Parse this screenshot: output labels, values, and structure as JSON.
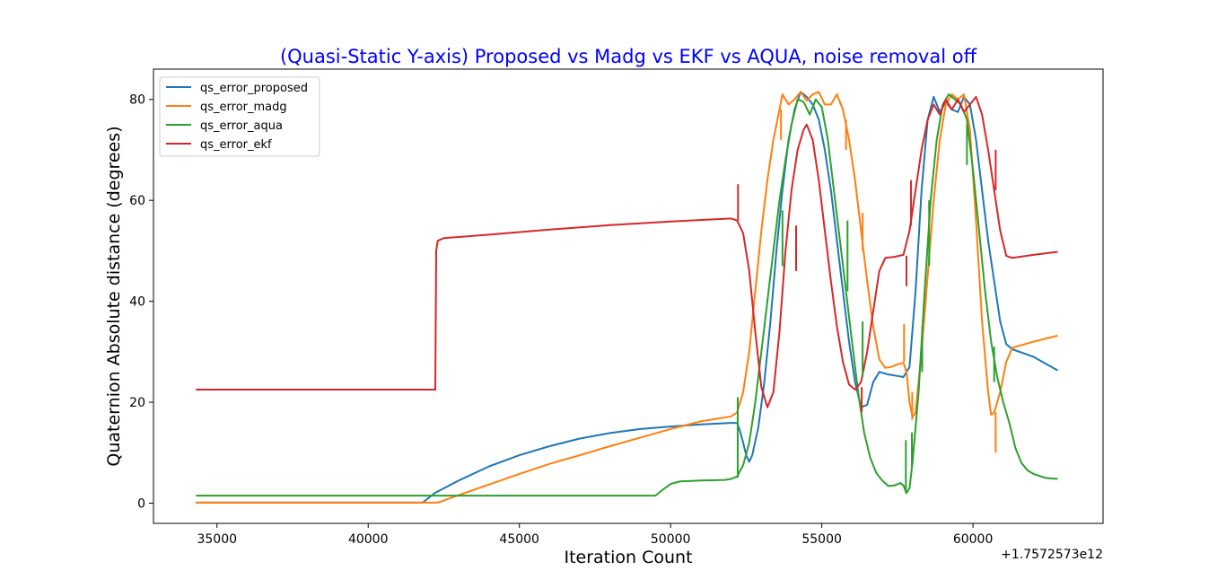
{
  "chart_data": {
    "type": "line",
    "title": "(Quasi-Static Y-axis) Proposed vs Madg vs EKF vs AQUA, noise removal off",
    "xlabel": "Iteration Count",
    "ylabel": "Quaternion Absolute distance (degrees)",
    "x_offset_label": "+1.7572573e12",
    "xlim": [
      32900,
      64300
    ],
    "ylim": [
      -4,
      86
    ],
    "x_ticks": [
      35000,
      40000,
      45000,
      50000,
      55000,
      60000
    ],
    "y_ticks": [
      0,
      20,
      40,
      60,
      80
    ],
    "grid": false,
    "legend_position": "top-left",
    "colors": {
      "title": "#0000ff",
      "axis": "#000000",
      "background": "#ffffff"
    },
    "series": [
      {
        "name": "qs_error_proposed",
        "color": "#1f77b4",
        "points": [
          [
            34300,
            0.1
          ],
          [
            41800,
            0.1
          ],
          [
            42200,
            2
          ],
          [
            43000,
            4.5
          ],
          [
            44000,
            7.3
          ],
          [
            45000,
            9.5
          ],
          [
            46000,
            11.3
          ],
          [
            47000,
            12.8
          ],
          [
            48000,
            13.9
          ],
          [
            49000,
            14.7
          ],
          [
            50000,
            15.2
          ],
          [
            51000,
            15.6
          ],
          [
            52000,
            15.9
          ],
          [
            52200,
            15.9
          ],
          [
            52300,
            14.2
          ],
          [
            52400,
            12
          ],
          [
            52500,
            9.5
          ],
          [
            52600,
            8.2
          ],
          [
            52700,
            9.5
          ],
          [
            52900,
            15
          ],
          [
            53100,
            24
          ],
          [
            53300,
            36
          ],
          [
            53500,
            50
          ],
          [
            53700,
            62
          ],
          [
            53900,
            72
          ],
          [
            54100,
            78
          ],
          [
            54300,
            81.5
          ],
          [
            54500,
            80.5
          ],
          [
            54700,
            79
          ],
          [
            54900,
            76
          ],
          [
            55100,
            70
          ],
          [
            55300,
            62
          ],
          [
            55500,
            52
          ],
          [
            55700,
            42
          ],
          [
            55900,
            32
          ],
          [
            56100,
            24
          ],
          [
            56300,
            19
          ],
          [
            56500,
            19.5
          ],
          [
            56700,
            24
          ],
          [
            56900,
            26
          ],
          [
            57200,
            25.5
          ],
          [
            57500,
            25.2
          ],
          [
            57700,
            25
          ],
          [
            57900,
            27
          ],
          [
            58100,
            42
          ],
          [
            58300,
            62
          ],
          [
            58500,
            76
          ],
          [
            58700,
            80.5
          ],
          [
            58900,
            77.5
          ],
          [
            59100,
            79.5
          ],
          [
            59300,
            78
          ],
          [
            59500,
            77.5
          ],
          [
            59700,
            80.5
          ],
          [
            59900,
            79
          ],
          [
            60100,
            72
          ],
          [
            60300,
            62
          ],
          [
            60500,
            52
          ],
          [
            60700,
            44
          ],
          [
            60900,
            36
          ],
          [
            61100,
            31.5
          ],
          [
            61300,
            30.5
          ],
          [
            62000,
            29
          ],
          [
            62800,
            26.3
          ]
        ]
      },
      {
        "name": "qs_error_madg",
        "color": "#ff7f0e",
        "points": [
          [
            34300,
            0.1
          ],
          [
            42300,
            0.1
          ],
          [
            43000,
            1.6
          ],
          [
            44000,
            3.7
          ],
          [
            45000,
            5.8
          ],
          [
            46000,
            7.8
          ],
          [
            47000,
            9.5
          ],
          [
            48000,
            11.3
          ],
          [
            49000,
            13
          ],
          [
            50000,
            14.7
          ],
          [
            51000,
            16.2
          ],
          [
            52000,
            17.2
          ],
          [
            52200,
            18
          ],
          [
            52400,
            22
          ],
          [
            52600,
            30
          ],
          [
            52800,
            42
          ],
          [
            53000,
            54
          ],
          [
            53200,
            64
          ],
          [
            53400,
            72
          ],
          [
            53600,
            78
          ],
          [
            53700,
            81
          ],
          [
            53900,
            79
          ],
          [
            54100,
            80
          ],
          [
            54300,
            81.5
          ],
          [
            54500,
            79.8
          ],
          [
            54700,
            81
          ],
          [
            54900,
            81.5
          ],
          [
            55100,
            79
          ],
          [
            55300,
            79
          ],
          [
            55500,
            81
          ],
          [
            55700,
            78
          ],
          [
            55900,
            72
          ],
          [
            56100,
            64
          ],
          [
            56300,
            54
          ],
          [
            56500,
            44
          ],
          [
            56700,
            35
          ],
          [
            56900,
            28.5
          ],
          [
            57100,
            26.8
          ],
          [
            57300,
            27
          ],
          [
            57500,
            27.5
          ],
          [
            57700,
            27.8
          ],
          [
            57800,
            26
          ],
          [
            57900,
            20
          ],
          [
            58000,
            17
          ],
          [
            58100,
            18
          ],
          [
            58300,
            30
          ],
          [
            58500,
            45
          ],
          [
            58700,
            60
          ],
          [
            58900,
            72
          ],
          [
            59100,
            79
          ],
          [
            59300,
            81
          ],
          [
            59500,
            80
          ],
          [
            59700,
            81
          ],
          [
            59900,
            74
          ],
          [
            60100,
            56
          ],
          [
            60300,
            36
          ],
          [
            60500,
            22
          ],
          [
            60600,
            17.5
          ],
          [
            60700,
            18
          ],
          [
            60900,
            22
          ],
          [
            61100,
            28
          ],
          [
            61300,
            30.8
          ],
          [
            62000,
            32
          ],
          [
            62800,
            33.2
          ]
        ]
      },
      {
        "name": "qs_error_aqua",
        "color": "#2ca02c",
        "points": [
          [
            34300,
            1.5
          ],
          [
            49500,
            1.5
          ],
          [
            49700,
            2.5
          ],
          [
            50000,
            3.8
          ],
          [
            50300,
            4.3
          ],
          [
            51000,
            4.5
          ],
          [
            51800,
            4.6
          ],
          [
            52000,
            4.8
          ],
          [
            52200,
            5.3
          ],
          [
            52400,
            7.5
          ],
          [
            52600,
            12
          ],
          [
            52800,
            20
          ],
          [
            53000,
            30
          ],
          [
            53200,
            40
          ],
          [
            53400,
            50
          ],
          [
            53600,
            60
          ],
          [
            53800,
            68
          ],
          [
            54000,
            75
          ],
          [
            54200,
            80
          ],
          [
            54400,
            79.5
          ],
          [
            54600,
            77
          ],
          [
            54800,
            80
          ],
          [
            55000,
            78.5
          ],
          [
            55200,
            72
          ],
          [
            55400,
            62
          ],
          [
            55600,
            52
          ],
          [
            55800,
            42
          ],
          [
            56000,
            32
          ],
          [
            56200,
            22
          ],
          [
            56400,
            14
          ],
          [
            56600,
            9
          ],
          [
            56800,
            6
          ],
          [
            57000,
            4.5
          ],
          [
            57200,
            3.4
          ],
          [
            57400,
            3.5
          ],
          [
            57600,
            4
          ],
          [
            57700,
            3.5
          ],
          [
            57800,
            2
          ],
          [
            57900,
            3
          ],
          [
            58000,
            8
          ],
          [
            58200,
            22
          ],
          [
            58400,
            42
          ],
          [
            58600,
            60
          ],
          [
            58800,
            72
          ],
          [
            59000,
            79
          ],
          [
            59200,
            81
          ],
          [
            59400,
            80
          ],
          [
            59600,
            79
          ],
          [
            59800,
            76
          ],
          [
            60000,
            66
          ],
          [
            60200,
            54
          ],
          [
            60400,
            42
          ],
          [
            60600,
            32
          ],
          [
            60800,
            25
          ],
          [
            61000,
            20
          ],
          [
            61200,
            16
          ],
          [
            61400,
            11
          ],
          [
            61600,
            8
          ],
          [
            61800,
            6.5
          ],
          [
            62000,
            5.8
          ],
          [
            62400,
            5
          ],
          [
            62800,
            4.8
          ]
        ]
      },
      {
        "name": "qs_error_ekf",
        "color": "#d62728",
        "points": [
          [
            34300,
            22.5
          ],
          [
            42220,
            22.5
          ],
          [
            42250,
            50
          ],
          [
            42300,
            52
          ],
          [
            42500,
            52.5
          ],
          [
            44000,
            53.2
          ],
          [
            46000,
            54.2
          ],
          [
            48000,
            55.1
          ],
          [
            50000,
            55.8
          ],
          [
            52000,
            56.4
          ],
          [
            52200,
            56
          ],
          [
            52400,
            53.5
          ],
          [
            52600,
            46
          ],
          [
            52800,
            34
          ],
          [
            53000,
            23
          ],
          [
            53200,
            19
          ],
          [
            53400,
            22
          ],
          [
            53600,
            34
          ],
          [
            53800,
            50
          ],
          [
            54000,
            62
          ],
          [
            54200,
            70
          ],
          [
            54400,
            74
          ],
          [
            54500,
            75
          ],
          [
            54700,
            72
          ],
          [
            54900,
            64
          ],
          [
            55100,
            54
          ],
          [
            55300,
            44
          ],
          [
            55500,
            35
          ],
          [
            55700,
            28
          ],
          [
            55900,
            23.5
          ],
          [
            56100,
            22.5
          ],
          [
            56300,
            24
          ],
          [
            56500,
            30
          ],
          [
            56700,
            38
          ],
          [
            56900,
            46
          ],
          [
            57100,
            48.6
          ],
          [
            57400,
            48.8
          ],
          [
            57700,
            49.2
          ],
          [
            57900,
            54
          ],
          [
            58100,
            62
          ],
          [
            58300,
            70
          ],
          [
            58500,
            76
          ],
          [
            58700,
            79
          ],
          [
            58900,
            77
          ],
          [
            59100,
            80
          ],
          [
            59300,
            78
          ],
          [
            59500,
            80
          ],
          [
            59700,
            77.5
          ],
          [
            59900,
            79
          ],
          [
            60100,
            80.5
          ],
          [
            60300,
            77
          ],
          [
            60500,
            70
          ],
          [
            60700,
            62
          ],
          [
            60900,
            54
          ],
          [
            61100,
            49
          ],
          [
            61300,
            48.6
          ],
          [
            62000,
            49.2
          ],
          [
            62800,
            49.8
          ]
        ]
      }
    ],
    "spikes": [
      {
        "series": "qs_error_ekf",
        "x": 52230,
        "y1": 56,
        "y2": 63.2
      },
      {
        "series": "qs_error_ekf",
        "x": 54150,
        "y1": 46,
        "y2": 55
      },
      {
        "series": "qs_error_ekf",
        "x": 56320,
        "y1": 18,
        "y2": 23
      },
      {
        "series": "qs_error_ekf",
        "x": 57800,
        "y1": 43,
        "y2": 49
      },
      {
        "series": "qs_error_ekf",
        "x": 57950,
        "y1": 55,
        "y2": 64
      },
      {
        "series": "qs_error_ekf",
        "x": 60750,
        "y1": 62,
        "y2": 70
      },
      {
        "series": "qs_error_madg",
        "x": 53650,
        "y1": 72,
        "y2": 78
      },
      {
        "series": "qs_error_madg",
        "x": 55800,
        "y1": 70,
        "y2": 76
      },
      {
        "series": "qs_error_madg",
        "x": 56350,
        "y1": 50,
        "y2": 57.5
      },
      {
        "series": "qs_error_madg",
        "x": 57720,
        "y1": 28,
        "y2": 35.5
      },
      {
        "series": "qs_error_madg",
        "x": 57990,
        "y1": 16.5,
        "y2": 22
      },
      {
        "series": "qs_error_madg",
        "x": 60750,
        "y1": 10,
        "y2": 18
      },
      {
        "series": "qs_error_aqua",
        "x": 52220,
        "y1": 5,
        "y2": 21
      },
      {
        "series": "qs_error_aqua",
        "x": 53700,
        "y1": 47,
        "y2": 58
      },
      {
        "series": "qs_error_aqua",
        "x": 55850,
        "y1": 42,
        "y2": 56
      },
      {
        "series": "qs_error_aqua",
        "x": 56350,
        "y1": 25,
        "y2": 36
      },
      {
        "series": "qs_error_aqua",
        "x": 57780,
        "y1": 2,
        "y2": 12.5
      },
      {
        "series": "qs_error_aqua",
        "x": 57980,
        "y1": 7,
        "y2": 14
      },
      {
        "series": "qs_error_aqua",
        "x": 58320,
        "y1": 26,
        "y2": 35
      },
      {
        "series": "qs_error_aqua",
        "x": 58550,
        "y1": 47,
        "y2": 60
      },
      {
        "series": "qs_error_aqua",
        "x": 59800,
        "y1": 67,
        "y2": 75
      },
      {
        "series": "qs_error_aqua",
        "x": 60700,
        "y1": 24,
        "y2": 31
      }
    ]
  }
}
